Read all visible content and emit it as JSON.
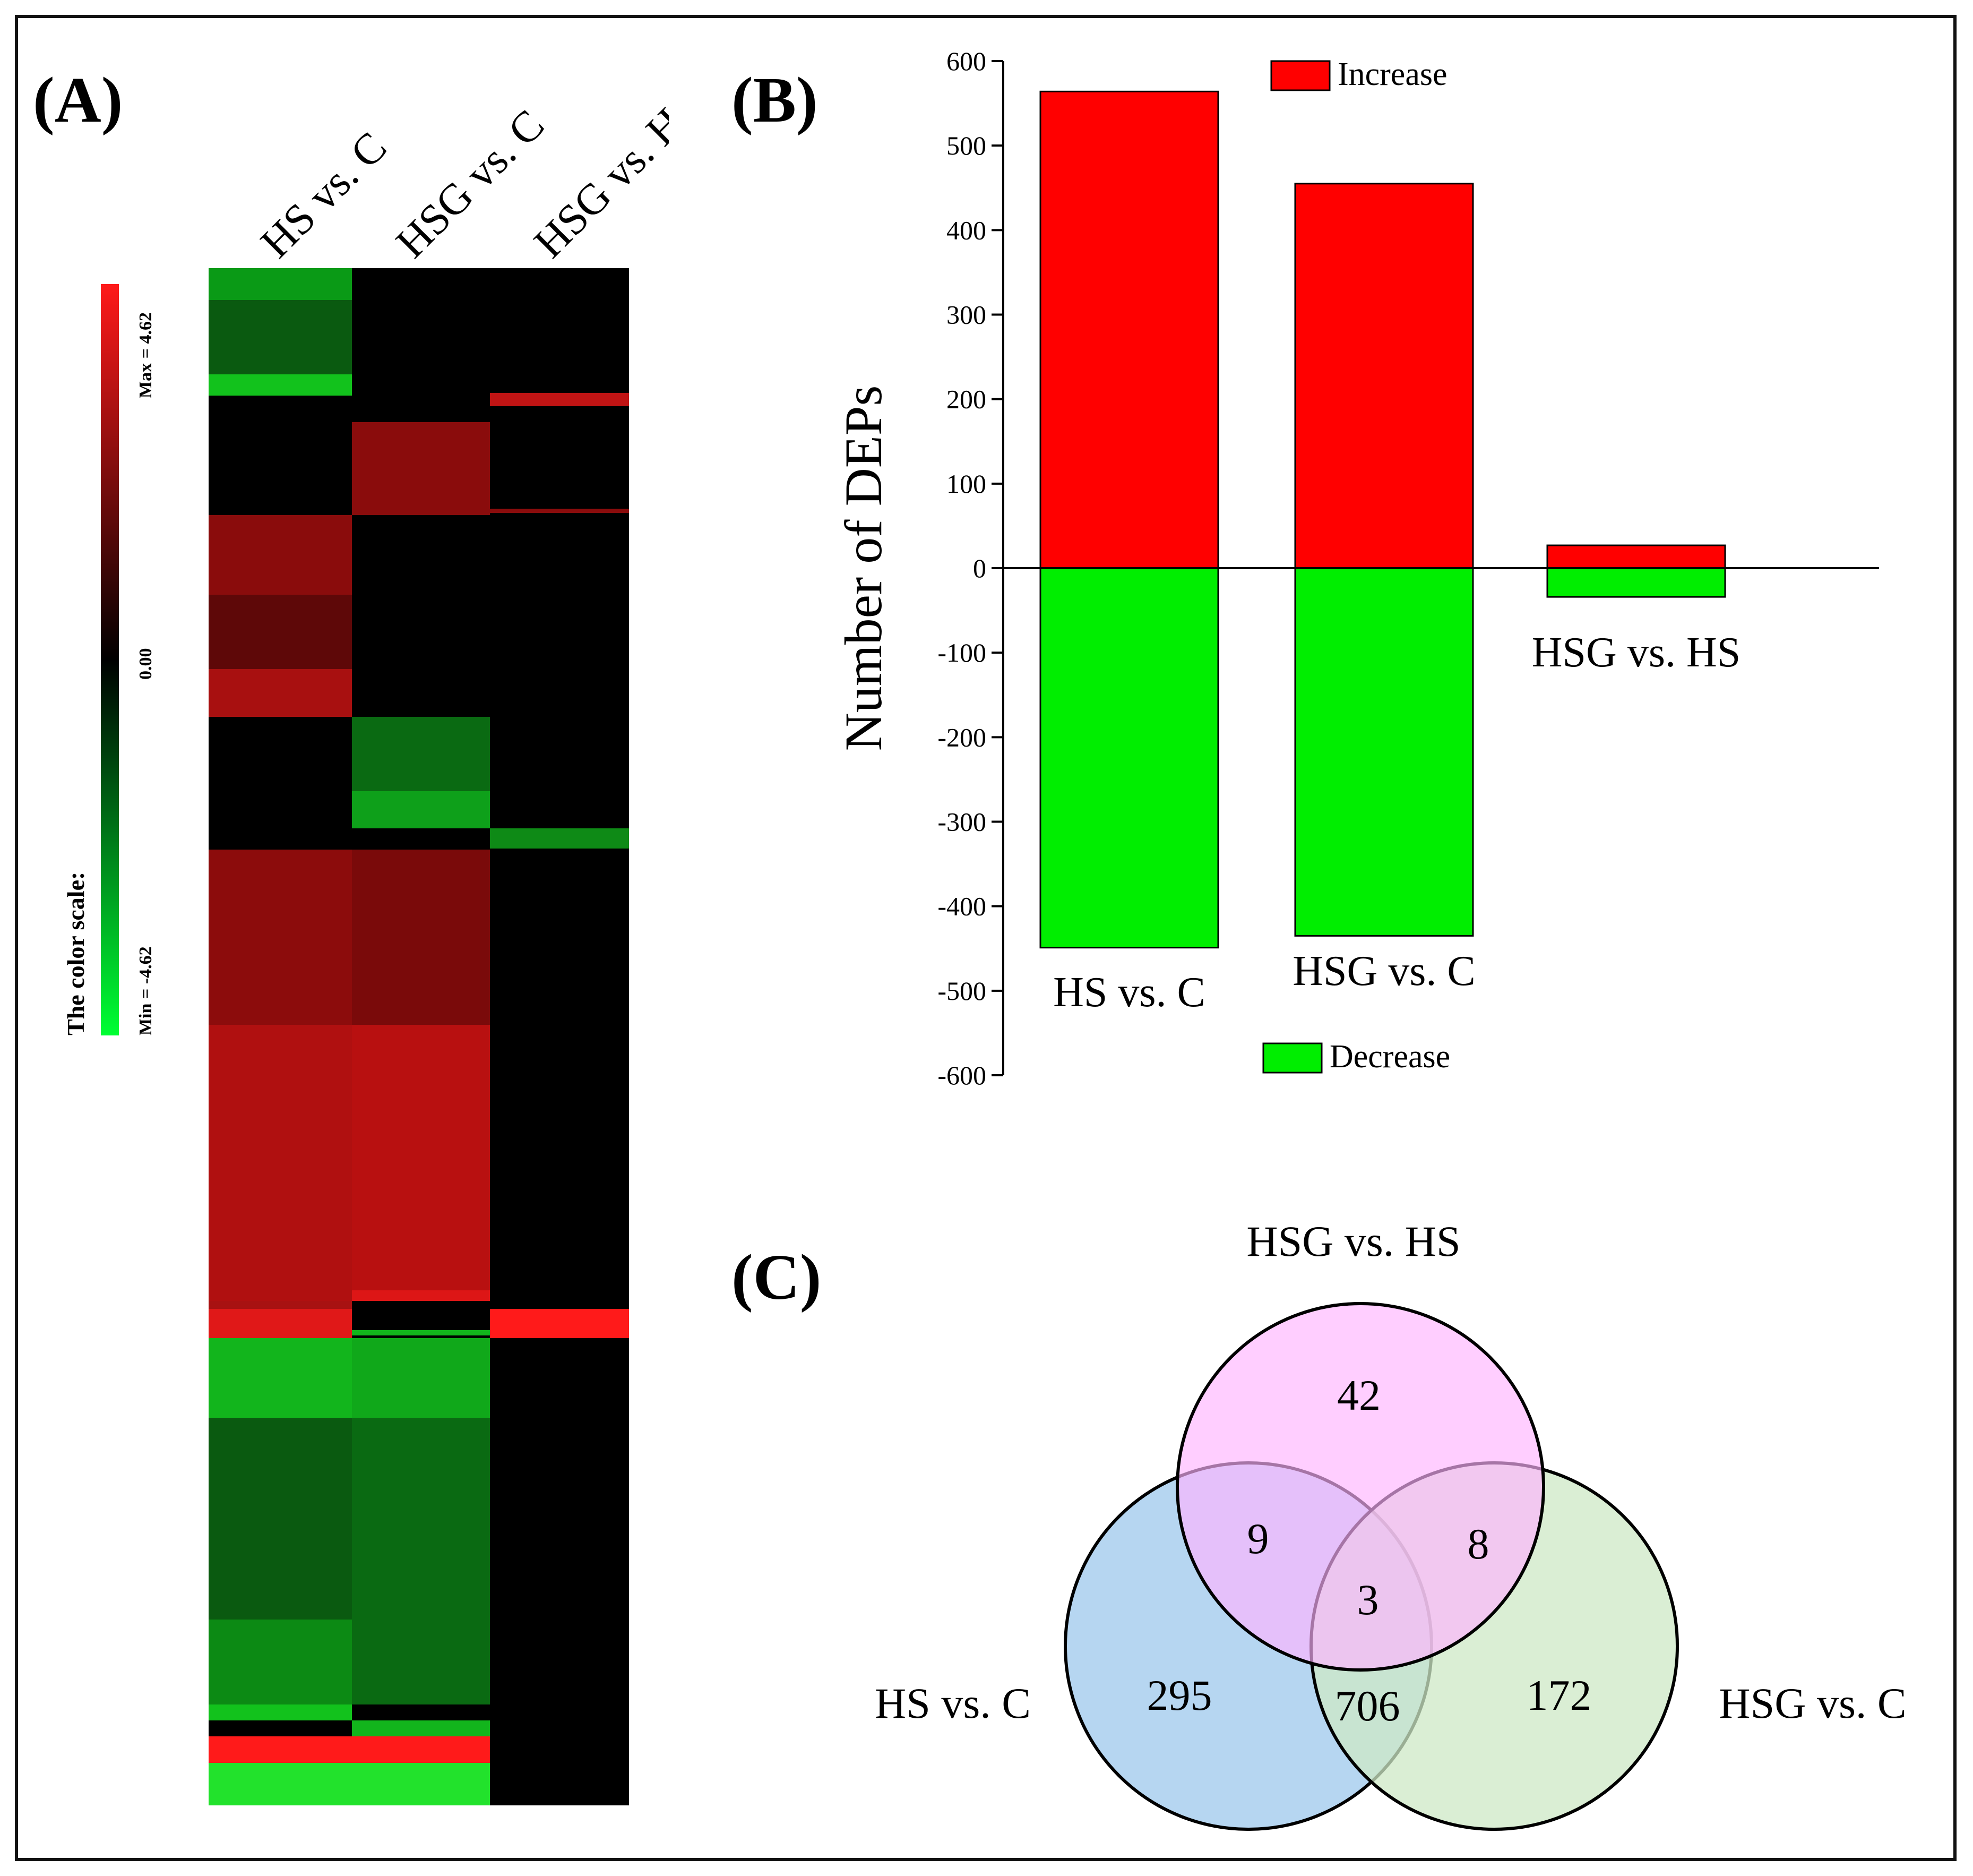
{
  "panels": {
    "a_label": "(A)",
    "b_label": "(B)",
    "c_label": "(C)"
  },
  "heatmap": {
    "columns": [
      "HS vs. C",
      "HSG vs. C",
      "HSG vs. HS"
    ],
    "scale_title": "The color scale:",
    "scale_max_label": "Max = 4.62",
    "scale_mid_label": "0.00",
    "scale_min_label": "Min = -4.62",
    "scale_max": 4.62,
    "scale_min": -4.62,
    "colors": {
      "high": "#ff1a1a",
      "mid": "#000000",
      "low": "#00ff33"
    }
  },
  "chart_data": [
    {
      "type": "bar",
      "panel": "B",
      "categories": [
        "HS vs. C",
        "HSG vs. C",
        "HSG vs. HS"
      ],
      "series": [
        {
          "name": "Increase",
          "values": [
            564,
            455,
            27
          ],
          "color": "#ff0000"
        },
        {
          "name": "Decrease",
          "values": [
            -449,
            -435,
            -34
          ],
          "color": "#00ee00"
        }
      ],
      "ylabel": "Number of DEPs",
      "xlabel": "",
      "ylim": [
        -600,
        600
      ],
      "yticks": [
        600,
        500,
        400,
        300,
        200,
        100,
        0,
        -100,
        -200,
        -300,
        -400,
        -500,
        -600
      ],
      "yticks_text": [
        "600",
        "500",
        "400",
        "300",
        "200",
        "100",
        "0",
        "-100",
        "-200",
        "-300",
        "-400",
        "-500",
        "-600"
      ],
      "legend": [
        {
          "label": "Increase",
          "color": "#ff0000",
          "placement": "top"
        },
        {
          "label": "Decrease",
          "color": "#00ee00",
          "placement": "bottom"
        }
      ]
    },
    {
      "type": "venn",
      "panel": "C",
      "sets": [
        {
          "name": "HSG vs. HS",
          "color": "#ffb3ff"
        },
        {
          "name": "HS vs. C",
          "color": "#a9cfee"
        },
        {
          "name": "HSG vs. C",
          "color": "#cde8c5"
        }
      ],
      "regions": {
        "only_hsg_vs_hs": "42",
        "hs_c_and_hsg_hs": "9",
        "hsg_c_and_hsg_hs": "8",
        "all_three": "3",
        "only_hs_vs_c": "295",
        "hs_c_and_hsg_c": "706",
        "only_hsg_vs_c": "172"
      }
    }
  ]
}
